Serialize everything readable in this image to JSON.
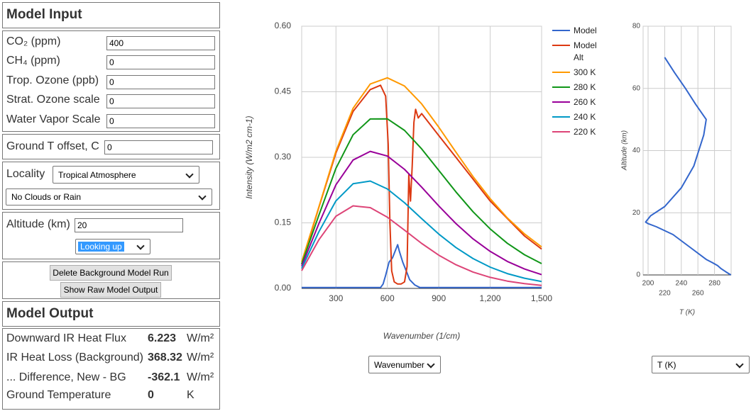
{
  "ui": {
    "model_input": {
      "title": "Model Input",
      "gases": [
        {
          "label": "CO₂ (ppm)",
          "value": 400
        },
        {
          "label": "CH₄ (ppm)",
          "value": 0
        },
        {
          "label": "Trop. Ozone (ppb)",
          "value": 0
        },
        {
          "label": "Strat. Ozone scale",
          "value": 0
        },
        {
          "label": "Water Vapor Scale",
          "value": 0
        }
      ],
      "ground_t": {
        "label": "Ground T offset, C",
        "value": 0
      },
      "locality": {
        "label": "Locality",
        "atmosphere": "Tropical Atmosphere",
        "clouds": "No Clouds or Rain"
      },
      "altitude": {
        "label": "Altitude (km)",
        "value": 20,
        "view": "Looking up"
      },
      "buttons": [
        "Delete Background Model Run",
        "Show Raw Model Output"
      ]
    },
    "model_output": {
      "title": "Model Output",
      "rows": [
        {
          "label": "Downward IR Heat Flux",
          "value": 6.223,
          "unit": "W/m²"
        },
        {
          "label": "IR Heat Loss (Background)",
          "value": 368.32,
          "unit": "W/m²"
        },
        {
          "label": "... Difference, New - BG",
          "value": -362.1,
          "unit": "W/m²"
        },
        {
          "label": "Ground Temperature",
          "value": 0,
          "unit": "K"
        }
      ]
    },
    "spectrum_x_select": "Wavenumber",
    "profile_x_select": "T (K)"
  },
  "chart_data": [
    {
      "type": "line",
      "x_label": "Wavenumber (1/cm)",
      "y_label": "Intensity (W/m2 cm-1)",
      "xlim": [
        100,
        1500
      ],
      "ylim": [
        0,
        0.6
      ],
      "xticks": [
        300,
        600,
        900,
        {
          "value": 1200,
          "label": "1,200"
        },
        {
          "value": 1500,
          "label": "1,500"
        }
      ],
      "yticks": [
        {
          "value": 0,
          "label": "0.00"
        },
        0.15,
        {
          "value": 0.3,
          "label": "0.30"
        },
        0.45,
        {
          "value": 0.6,
          "label": "0.60"
        }
      ],
      "grid": true,
      "legend": "right",
      "x": [
        100,
        200,
        300,
        400,
        500,
        600,
        700,
        800,
        900,
        1000,
        1100,
        1200,
        1300,
        1400,
        1500
      ],
      "series": [
        {
          "name": "Model",
          "color": "#3366cc",
          "x": [
            100,
            560,
            575,
            590,
            610,
            630,
            650,
            660,
            670,
            690,
            710,
            730,
            760,
            790,
            1500
          ],
          "values": [
            0.002,
            0.002,
            0.01,
            0.03,
            0.06,
            0.07,
            0.09,
            0.1,
            0.085,
            0.06,
            0.04,
            0.02,
            0.008,
            0.002,
            0.002
          ]
        },
        {
          "name": "Model Alt",
          "color": "#dc3912",
          "x": [
            100,
            200,
            300,
            400,
            500,
            560,
            590,
            605,
            615,
            625,
            640,
            660,
            680,
            700,
            715,
            725,
            735,
            745,
            755,
            765,
            780,
            800,
            900,
            1000,
            1100,
            1200,
            1300,
            1400,
            1500
          ],
          "values": [
            0.055,
            0.185,
            0.31,
            0.405,
            0.455,
            0.465,
            0.44,
            0.33,
            0.15,
            0.04,
            0.015,
            0.01,
            0.01,
            0.015,
            0.05,
            0.26,
            0.2,
            0.28,
            0.38,
            0.41,
            0.39,
            0.4,
            0.35,
            0.3,
            0.25,
            0.2,
            0.16,
            0.12,
            0.09
          ]
        },
        {
          "name": "300 K",
          "color": "#ff9900",
          "values": [
            0.0608,
            0.1859,
            0.3142,
            0.4122,
            0.4677,
            0.4819,
            0.4631,
            0.4222,
            0.3691,
            0.3118,
            0.2559,
            0.2053,
            0.1614,
            0.1247,
            0.0949
          ]
        },
        {
          "name": "280 K",
          "color": "#109618",
          "values": [
            0.0557,
            0.1668,
            0.2751,
            0.3516,
            0.3878,
            0.388,
            0.3616,
            0.3193,
            0.2702,
            0.2208,
            0.1754,
            0.136,
            0.1033,
            0.0771,
            0.0567
          ]
        },
        {
          "name": "260 K",
          "color": "#990099",
          "values": [
            0.0506,
            0.1478,
            0.2372,
            0.2939,
            0.3137,
            0.303,
            0.2724,
            0.2317,
            0.1888,
            0.1484,
            0.1134,
            0.0846,
            0.0618,
            0.0444,
            0.0314
          ]
        },
        {
          "name": "240 K",
          "color": "#0099c6",
          "values": [
            0.0456,
            0.1292,
            0.2005,
            0.2395,
            0.2456,
            0.2277,
            0.1961,
            0.1597,
            0.1243,
            0.0935,
            0.0682,
            0.0486,
            0.0339,
            0.0233,
            0.0157
          ]
        },
        {
          "name": "220 K",
          "color": "#dd4477",
          "values": [
            0.0405,
            0.1109,
            0.1653,
            0.1889,
            0.1848,
            0.1629,
            0.1333,
            0.1029,
            0.076,
            0.0541,
            0.0374,
            0.0253,
            0.0167,
            0.0108,
            0.0069
          ]
        }
      ]
    },
    {
      "type": "line",
      "x_label": "T (K)",
      "y_label": "Altitude (km)",
      "xlim": [
        194,
        300
      ],
      "ylim": [
        0,
        80
      ],
      "xticks": [
        200,
        220,
        240,
        260,
        280
      ],
      "yticks": [
        0,
        20,
        40,
        60,
        80
      ],
      "grid": true,
      "series": [
        {
          "color": "#3366cc",
          "x": [
            299.7,
            293.7,
            288,
            283.7,
            277,
            270,
            250,
            230,
            210,
            200,
            197,
            203,
            220,
            240,
            255,
            267,
            270,
            257,
            245,
            232,
            220
          ],
          "values": [
            0,
            1,
            2,
            3,
            4,
            5,
            9,
            13,
            15.5,
            16.5,
            17,
            19,
            22,
            28,
            35,
            45,
            50,
            55,
            60,
            65,
            70
          ]
        }
      ]
    }
  ]
}
